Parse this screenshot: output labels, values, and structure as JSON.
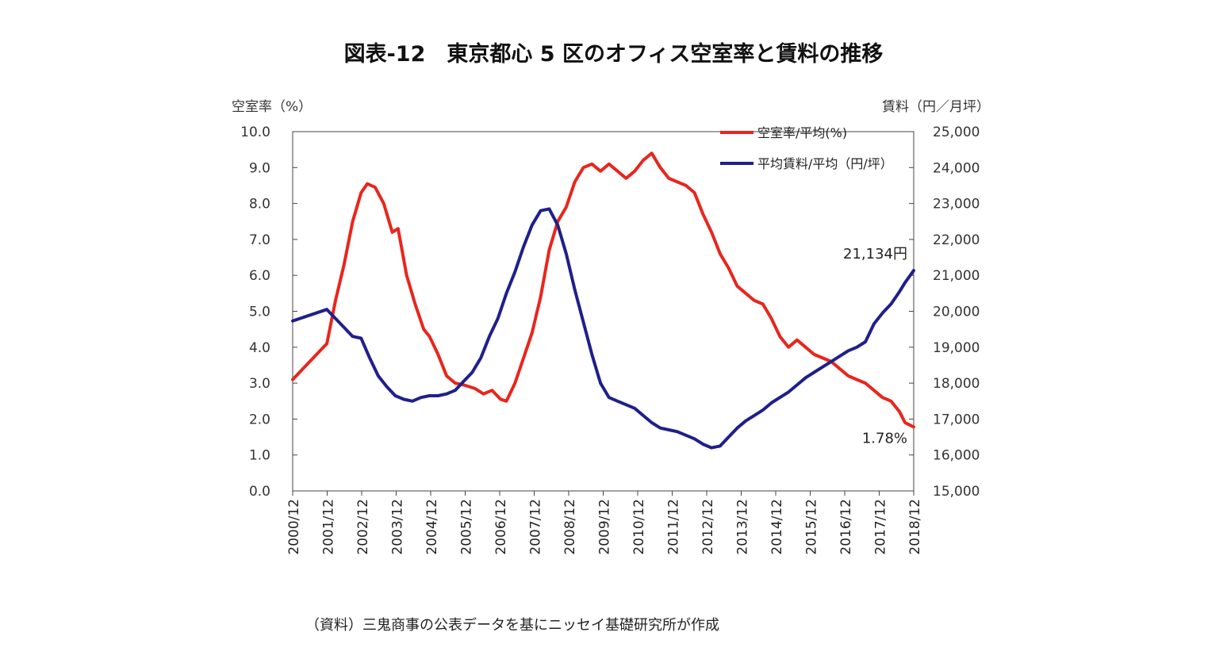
{
  "title": "図表-12　東京都心 5 区のオフィス空室率と賃料の推移",
  "source": "（資料）三鬼商事の公表データを基にニッセイ基礎研究所が作成",
  "chart_data": {
    "type": "line",
    "x_ticks": [
      "2000/12",
      "2001/12",
      "2002/12",
      "2003/12",
      "2004/12",
      "2005/12",
      "2006/12",
      "2007/12",
      "2008/12",
      "2009/12",
      "2010/12",
      "2011/12",
      "2012/12",
      "2013/12",
      "2014/12",
      "2015/12",
      "2016/12",
      "2017/12",
      "2018/12"
    ],
    "xlim": [
      2000.917,
      2019.083
    ],
    "y_left": {
      "label": "空室率（%）",
      "ylim": [
        0,
        10
      ],
      "ticks": [
        "0.0",
        "1.0",
        "2.0",
        "3.0",
        "4.0",
        "5.0",
        "6.0",
        "7.0",
        "8.0",
        "9.0",
        "10.0"
      ]
    },
    "y_right": {
      "label": "賃料（円／月坪）",
      "ylim": [
        15000,
        25000
      ],
      "ticks": [
        "15,000",
        "16,000",
        "17,000",
        "18,000",
        "19,000",
        "20,000",
        "21,000",
        "22,000",
        "23,000",
        "24,000",
        "25,000"
      ]
    },
    "grid": false,
    "legend_position": "top-right",
    "series": [
      {
        "name": "空室率/平均(%)",
        "axis": "left",
        "color": "#e8261c",
        "points": [
          [
            2000.917,
            3.1
          ],
          [
            2001.917,
            4.1
          ],
          [
            2002.17,
            5.3
          ],
          [
            2002.42,
            6.3
          ],
          [
            2002.67,
            7.5
          ],
          [
            2002.92,
            8.3
          ],
          [
            2003.1,
            8.55
          ],
          [
            2003.33,
            8.45
          ],
          [
            2003.58,
            8.0
          ],
          [
            2003.83,
            7.2
          ],
          [
            2004.0,
            7.3
          ],
          [
            2004.25,
            6.0
          ],
          [
            2004.5,
            5.2
          ],
          [
            2004.75,
            4.5
          ],
          [
            2004.92,
            4.3
          ],
          [
            2005.17,
            3.8
          ],
          [
            2005.42,
            3.2
          ],
          [
            2005.67,
            3.0
          ],
          [
            2005.92,
            2.95
          ],
          [
            2006.25,
            2.85
          ],
          [
            2006.5,
            2.7
          ],
          [
            2006.75,
            2.8
          ],
          [
            2007.0,
            2.55
          ],
          [
            2007.17,
            2.5
          ],
          [
            2007.42,
            3.0
          ],
          [
            2007.67,
            3.7
          ],
          [
            2007.92,
            4.4
          ],
          [
            2008.17,
            5.4
          ],
          [
            2008.42,
            6.7
          ],
          [
            2008.67,
            7.5
          ],
          [
            2008.92,
            7.9
          ],
          [
            2009.17,
            8.6
          ],
          [
            2009.42,
            9.0
          ],
          [
            2009.67,
            9.1
          ],
          [
            2009.92,
            8.9
          ],
          [
            2010.17,
            9.1
          ],
          [
            2010.42,
            8.9
          ],
          [
            2010.67,
            8.7
          ],
          [
            2010.92,
            8.9
          ],
          [
            2011.17,
            9.2
          ],
          [
            2011.42,
            9.4
          ],
          [
            2011.67,
            9.0
          ],
          [
            2011.92,
            8.7
          ],
          [
            2012.17,
            8.6
          ],
          [
            2012.42,
            8.5
          ],
          [
            2012.67,
            8.3
          ],
          [
            2012.92,
            7.7
          ],
          [
            2013.17,
            7.2
          ],
          [
            2013.42,
            6.6
          ],
          [
            2013.67,
            6.2
          ],
          [
            2013.92,
            5.7
          ],
          [
            2014.17,
            5.5
          ],
          [
            2014.42,
            5.3
          ],
          [
            2014.67,
            5.2
          ],
          [
            2014.92,
            4.8
          ],
          [
            2015.17,
            4.3
          ],
          [
            2015.42,
            4.0
          ],
          [
            2015.67,
            4.2
          ],
          [
            2015.92,
            4.0
          ],
          [
            2016.17,
            3.8
          ],
          [
            2016.42,
            3.7
          ],
          [
            2016.67,
            3.6
          ],
          [
            2016.92,
            3.4
          ],
          [
            2017.17,
            3.2
          ],
          [
            2017.42,
            3.1
          ],
          [
            2017.67,
            3.0
          ],
          [
            2017.92,
            2.8
          ],
          [
            2018.17,
            2.6
          ],
          [
            2018.42,
            2.5
          ],
          [
            2018.67,
            2.2
          ],
          [
            2018.83,
            1.9
          ],
          [
            2019.083,
            1.78
          ]
        ]
      },
      {
        "name": "平均賃料/平均（円/坪）",
        "axis": "right",
        "color": "#1f1f8c",
        "points": [
          [
            2000.917,
            19730
          ],
          [
            2001.917,
            20050
          ],
          [
            2002.17,
            19800
          ],
          [
            2002.42,
            19550
          ],
          [
            2002.67,
            19300
          ],
          [
            2002.92,
            19250
          ],
          [
            2003.17,
            18700
          ],
          [
            2003.42,
            18200
          ],
          [
            2003.67,
            17900
          ],
          [
            2003.92,
            17650
          ],
          [
            2004.17,
            17550
          ],
          [
            2004.42,
            17500
          ],
          [
            2004.67,
            17600
          ],
          [
            2004.92,
            17650
          ],
          [
            2005.17,
            17650
          ],
          [
            2005.42,
            17700
          ],
          [
            2005.67,
            17800
          ],
          [
            2005.92,
            18050
          ],
          [
            2006.17,
            18300
          ],
          [
            2006.42,
            18700
          ],
          [
            2006.67,
            19300
          ],
          [
            2006.92,
            19800
          ],
          [
            2007.17,
            20500
          ],
          [
            2007.42,
            21100
          ],
          [
            2007.67,
            21800
          ],
          [
            2007.92,
            22400
          ],
          [
            2008.17,
            22800
          ],
          [
            2008.42,
            22850
          ],
          [
            2008.67,
            22400
          ],
          [
            2008.92,
            21600
          ],
          [
            2009.17,
            20600
          ],
          [
            2009.42,
            19700
          ],
          [
            2009.67,
            18800
          ],
          [
            2009.92,
            18000
          ],
          [
            2010.17,
            17600
          ],
          [
            2010.42,
            17500
          ],
          [
            2010.67,
            17400
          ],
          [
            2010.92,
            17300
          ],
          [
            2011.17,
            17100
          ],
          [
            2011.42,
            16900
          ],
          [
            2011.67,
            16750
          ],
          [
            2011.92,
            16700
          ],
          [
            2012.17,
            16650
          ],
          [
            2012.42,
            16550
          ],
          [
            2012.67,
            16450
          ],
          [
            2012.92,
            16300
          ],
          [
            2013.17,
            16200
          ],
          [
            2013.42,
            16250
          ],
          [
            2013.67,
            16500
          ],
          [
            2013.92,
            16750
          ],
          [
            2014.17,
            16950
          ],
          [
            2014.42,
            17100
          ],
          [
            2014.67,
            17250
          ],
          [
            2014.92,
            17450
          ],
          [
            2015.17,
            17600
          ],
          [
            2015.42,
            17750
          ],
          [
            2015.67,
            17950
          ],
          [
            2015.92,
            18150
          ],
          [
            2016.17,
            18300
          ],
          [
            2016.42,
            18450
          ],
          [
            2016.67,
            18600
          ],
          [
            2016.92,
            18750
          ],
          [
            2017.17,
            18900
          ],
          [
            2017.42,
            19000
          ],
          [
            2017.67,
            19150
          ],
          [
            2017.92,
            19650
          ],
          [
            2018.17,
            19950
          ],
          [
            2018.42,
            20200
          ],
          [
            2018.67,
            20550
          ],
          [
            2018.83,
            20800
          ],
          [
            2019.083,
            21134
          ]
        ]
      }
    ],
    "annotations": [
      {
        "text": "21,134円",
        "series": 1
      },
      {
        "text": "1.78%",
        "series": 0
      }
    ]
  }
}
